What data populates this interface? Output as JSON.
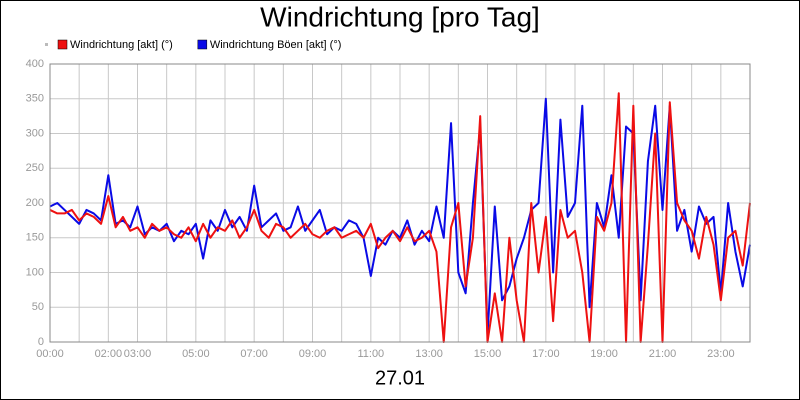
{
  "chart_data": {
    "type": "line",
    "title": "Windrichtung [pro Tag]",
    "xlabel": "27.01",
    "x": [
      0,
      0.25,
      0.5,
      0.75,
      1,
      1.25,
      1.5,
      1.75,
      2,
      2.25,
      2.5,
      2.75,
      3,
      3.25,
      3.5,
      3.75,
      4,
      4.25,
      4.5,
      4.75,
      5,
      5.25,
      5.5,
      5.75,
      6,
      6.25,
      6.5,
      6.75,
      7,
      7.25,
      7.5,
      7.75,
      8,
      8.25,
      8.5,
      8.75,
      9,
      9.25,
      9.5,
      9.75,
      10,
      10.25,
      10.5,
      10.75,
      11,
      11.25,
      11.5,
      11.75,
      12,
      12.25,
      12.5,
      12.75,
      13,
      13.25,
      13.5,
      13.75,
      14,
      14.25,
      14.5,
      14.75,
      15,
      15.25,
      15.5,
      15.75,
      16,
      16.25,
      16.5,
      16.75,
      17,
      17.25,
      17.5,
      17.75,
      18,
      18.25,
      18.5,
      18.75,
      19,
      19.25,
      19.5,
      19.75,
      20,
      20.25,
      20.5,
      20.75,
      21,
      21.25,
      21.5,
      21.75,
      22,
      22.25,
      22.5,
      22.75,
      23,
      23.25,
      23.5,
      23.75,
      24
    ],
    "series": [
      {
        "name": "Windrichtung [akt] (°)",
        "color": "#ee1111",
        "values": [
          190,
          185,
          185,
          190,
          175,
          185,
          180,
          170,
          210,
          165,
          180,
          160,
          165,
          150,
          170,
          160,
          165,
          155,
          150,
          165,
          145,
          170,
          150,
          165,
          160,
          175,
          150,
          165,
          190,
          160,
          150,
          170,
          165,
          150,
          160,
          170,
          155,
          150,
          160,
          165,
          150,
          155,
          160,
          150,
          170,
          135,
          150,
          160,
          145,
          165,
          145,
          150,
          160,
          130,
          0,
          165,
          200,
          80,
          150,
          325,
          0,
          70,
          0,
          150,
          60,
          0,
          200,
          100,
          180,
          30,
          190,
          150,
          160,
          100,
          0,
          180,
          160,
          200,
          358,
          0,
          340,
          0,
          140,
          300,
          0,
          345,
          200,
          175,
          160,
          120,
          180,
          140,
          60,
          150,
          160,
          110,
          200
        ]
      },
      {
        "name": "Windrichtung Böen [akt] (°)",
        "color": "#0a0ae6",
        "values": [
          195,
          200,
          190,
          180,
          170,
          190,
          185,
          175,
          240,
          170,
          175,
          165,
          195,
          155,
          165,
          160,
          170,
          145,
          160,
          155,
          170,
          120,
          175,
          160,
          190,
          165,
          180,
          160,
          225,
          165,
          175,
          185,
          160,
          165,
          195,
          160,
          175,
          190,
          155,
          165,
          160,
          175,
          170,
          150,
          95,
          150,
          140,
          160,
          150,
          175,
          140,
          160,
          145,
          195,
          150,
          315,
          100,
          70,
          200,
          310,
          10,
          195,
          60,
          80,
          120,
          150,
          190,
          200,
          350,
          100,
          320,
          180,
          200,
          340,
          50,
          200,
          165,
          240,
          150,
          310,
          300,
          60,
          260,
          340,
          190,
          340,
          160,
          190,
          130,
          195,
          170,
          180,
          70,
          200,
          130,
          80,
          140
        ]
      }
    ],
    "xlim": [
      0,
      24
    ],
    "xticks": [
      {
        "value": 0,
        "label": "00:00"
      },
      {
        "value": 1,
        "label": null
      },
      {
        "value": 2,
        "label": "02:00"
      },
      {
        "value": 3,
        "label": "03:00"
      },
      {
        "value": 4,
        "label": null
      },
      {
        "value": 5,
        "label": "05:00"
      },
      {
        "value": 6,
        "label": null
      },
      {
        "value": 7,
        "label": "07:00"
      },
      {
        "value": 8,
        "label": null
      },
      {
        "value": 9,
        "label": "09:00"
      },
      {
        "value": 10,
        "label": null
      },
      {
        "value": 11,
        "label": "11:00"
      },
      {
        "value": 12,
        "label": null
      },
      {
        "value": 13,
        "label": "13:00"
      },
      {
        "value": 14,
        "label": null
      },
      {
        "value": 15,
        "label": "15:00"
      },
      {
        "value": 16,
        "label": null
      },
      {
        "value": 17,
        "label": "17:00"
      },
      {
        "value": 18,
        "label": null
      },
      {
        "value": 19,
        "label": "19:00"
      },
      {
        "value": 20,
        "label": null
      },
      {
        "value": 21,
        "label": "21:00"
      },
      {
        "value": 22,
        "label": null
      },
      {
        "value": 23,
        "label": "23:00"
      },
      {
        "value": 24,
        "label": null
      }
    ],
    "ylim": [
      0,
      400
    ],
    "yticks": [
      0,
      50,
      100,
      150,
      200,
      250,
      300,
      350,
      400
    ],
    "grid": true
  }
}
